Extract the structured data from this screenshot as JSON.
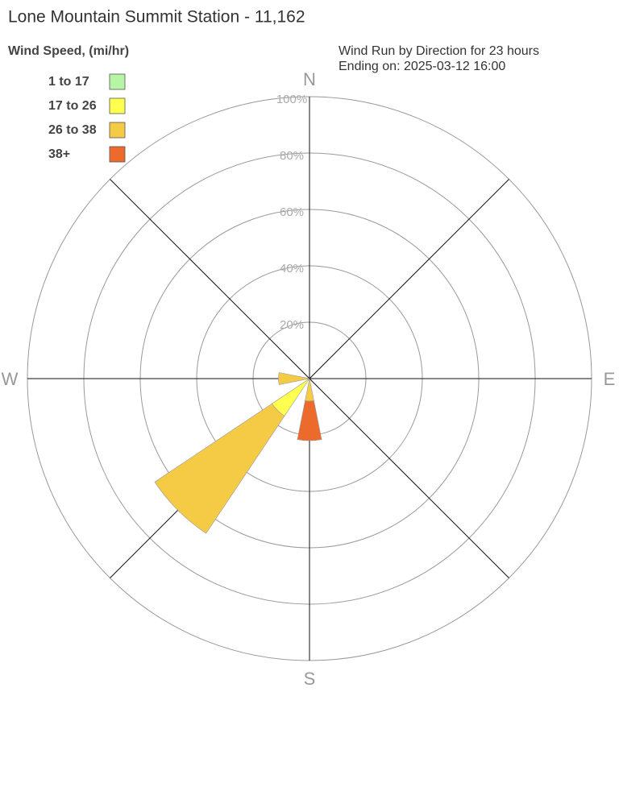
{
  "chart_data": {
    "type": "windrose",
    "title": "Lone Mountain Summit Station - 11,162",
    "legend_title": "Wind Speed, (mi/hr)",
    "subtitle": [
      "Wind Run by Direction for 23 hours",
      "Ending on: 2025-03-12 16:00"
    ],
    "directions": [
      "N",
      null,
      null,
      null,
      "E",
      null,
      null,
      null,
      "S",
      null,
      null,
      null,
      "W",
      null,
      null,
      null
    ],
    "series": [
      {
        "name": "1 to 17",
        "color": "#b5f5a5",
        "values": [
          0,
          0,
          0,
          0,
          0,
          0,
          0,
          0,
          0,
          0,
          0,
          0,
          0,
          0,
          0,
          0
        ]
      },
      {
        "name": "17 to 26",
        "color": "#ffff50",
        "values": [
          0,
          0,
          0,
          0,
          0,
          0,
          0,
          0,
          0,
          0,
          16,
          0,
          0,
          0,
          0,
          0
        ]
      },
      {
        "name": "26 to 38",
        "color": "#f5cb45",
        "values": [
          0,
          0,
          0,
          0,
          0,
          0,
          0,
          0,
          8,
          0,
          50,
          0,
          11,
          0,
          0,
          0
        ]
      },
      {
        "name": "38+",
        "color": "#ed6a2d",
        "values": [
          0,
          0,
          0,
          0,
          0,
          0,
          0,
          0,
          14,
          0,
          0,
          0,
          0,
          0,
          0,
          0
        ]
      }
    ],
    "rlim": [
      0,
      100
    ],
    "rticks": [
      {
        "value": 20,
        "label": "20%"
      },
      {
        "value": 40,
        "label": "40%"
      },
      {
        "value": 60,
        "label": "60%"
      },
      {
        "value": 80,
        "label": "80%"
      },
      {
        "value": 100,
        "label": "100%"
      }
    ],
    "grid": true
  }
}
